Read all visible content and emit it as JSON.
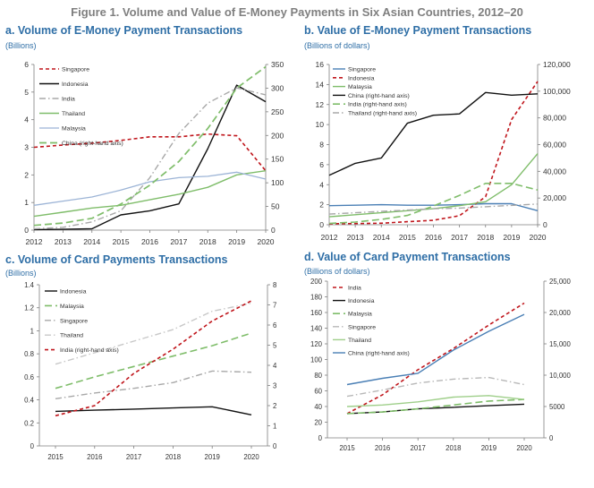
{
  "figure_title": "Figure 1. Volume and Value of E-Money Payments in Six Asian Countries, 2012–20",
  "chart_data": [
    {
      "id": "a",
      "type": "line",
      "title": "a. Volume of E-Money Payment Transactions",
      "unit": "(Billions)",
      "categories": [
        "2012",
        "2013",
        "2014",
        "2015",
        "2016",
        "2017",
        "2018",
        "2019",
        "2020"
      ],
      "ylim": [
        0,
        6
      ],
      "yticks": [
        0,
        1,
        2,
        3,
        4,
        5,
        6
      ],
      "y2lim": [
        0,
        350
      ],
      "y2ticks": [
        0,
        50,
        100,
        150,
        200,
        250,
        300,
        350
      ],
      "legend": "top-left",
      "series": [
        {
          "name": "Singapore",
          "color": "#c0161c",
          "dash": "4,3",
          "width": 1.6,
          "axis": "left",
          "values": [
            3.0,
            3.08,
            3.15,
            3.25,
            3.38,
            3.38,
            3.48,
            3.42,
            2.15
          ]
        },
        {
          "name": "Indonesia",
          "color": "#111111",
          "dash": "",
          "width": 1.4,
          "axis": "left",
          "values": [
            0.02,
            0.03,
            0.05,
            0.55,
            0.7,
            0.95,
            2.95,
            5.25,
            4.65
          ]
        },
        {
          "name": "India",
          "color": "#a8a8a8",
          "dash": "7,3,1.5,3",
          "width": 1.4,
          "axis": "left",
          "values": [
            0.05,
            0.1,
            0.3,
            0.7,
            1.9,
            3.5,
            4.6,
            5.15,
            4.9
          ]
        },
        {
          "name": "Thailand",
          "color": "#7fbd6a",
          "dash": "",
          "width": 1.4,
          "axis": "left",
          "values": [
            0.5,
            0.65,
            0.8,
            0.9,
            1.1,
            1.3,
            1.55,
            2.0,
            2.15
          ]
        },
        {
          "name": "Malaysia",
          "color": "#9cb4d6",
          "dash": "",
          "width": 1.3,
          "axis": "left",
          "values": [
            0.9,
            1.05,
            1.2,
            1.45,
            1.75,
            1.9,
            1.95,
            2.1,
            1.85
          ]
        },
        {
          "name": "China (right-hand axis)",
          "color": "#7fbd6a",
          "dash": "8,4",
          "width": 1.7,
          "axis": "right",
          "values": [
            10,
            15,
            25,
            55,
            95,
            145,
            215,
            300,
            345
          ]
        }
      ]
    },
    {
      "id": "b",
      "type": "line",
      "title": "b. Value of E-Money Payment Transactions",
      "unit": "(Billions of dollars)",
      "categories": [
        "2012",
        "2013",
        "2014",
        "2015",
        "2016",
        "2017",
        "2018",
        "2019",
        "2020"
      ],
      "ylim": [
        0,
        16
      ],
      "yticks": [
        0,
        2,
        4,
        6,
        8,
        10,
        12,
        14,
        16
      ],
      "y2lim": [
        0,
        120000
      ],
      "y2ticks": [
        0,
        20000,
        40000,
        60000,
        80000,
        100000,
        120000
      ],
      "legend": "top-left",
      "series": [
        {
          "name": "Singapore",
          "color": "#4a7fb5",
          "dash": "",
          "width": 1.4,
          "axis": "left",
          "values": [
            1.9,
            1.95,
            2.0,
            1.95,
            1.95,
            2.0,
            2.1,
            2.1,
            1.4
          ]
        },
        {
          "name": "Indonesia",
          "color": "#c0161c",
          "dash": "4,3",
          "width": 1.6,
          "axis": "left",
          "values": [
            0.1,
            0.12,
            0.15,
            0.3,
            0.45,
            0.9,
            2.8,
            10.5,
            14.3
          ]
        },
        {
          "name": "Malaysia",
          "color": "#7fbd6a",
          "dash": "",
          "width": 1.4,
          "axis": "left",
          "values": [
            0.8,
            1.0,
            1.2,
            1.4,
            1.6,
            1.9,
            2.3,
            4.0,
            7.1
          ]
        },
        {
          "name": "China (right-hand axis)",
          "color": "#111111",
          "dash": "",
          "width": 1.4,
          "axis": "right",
          "values": [
            37000,
            46000,
            50000,
            76000,
            82000,
            83000,
            99000,
            97000,
            98000
          ]
        },
        {
          "name": "India (right-hand axis)",
          "color": "#7fbd6a",
          "dash": "8,4",
          "width": 1.6,
          "axis": "right",
          "values": [
            1000,
            2000,
            4000,
            7000,
            14000,
            22000,
            31000,
            31000,
            26000
          ]
        },
        {
          "name": "Thailand (right-hand axis)",
          "color": "#a8a8a8",
          "dash": "7,3,1.5,3",
          "width": 1.4,
          "axis": "right",
          "values": [
            8000,
            9000,
            10000,
            11000,
            12000,
            12500,
            13500,
            14500,
            15500
          ]
        }
      ]
    },
    {
      "id": "c",
      "type": "line",
      "title": "c. Volume of Card Payments Transactions",
      "unit": "(Billions)",
      "categories": [
        "2015",
        "2016",
        "2017",
        "2018",
        "2019",
        "2020"
      ],
      "ylim": [
        0,
        1.4
      ],
      "yticks": [
        0,
        0.2,
        0.4,
        0.6,
        0.8,
        1,
        1.2,
        1.4
      ],
      "y2lim": [
        0,
        8
      ],
      "y2ticks": [
        0,
        1,
        2,
        3,
        4,
        5,
        6,
        7,
        8
      ],
      "legend": "top-left",
      "series": [
        {
          "name": "Indonesia",
          "color": "#111111",
          "dash": "",
          "width": 1.4,
          "axis": "left",
          "values": [
            0.3,
            0.31,
            0.32,
            0.33,
            0.34,
            0.27
          ]
        },
        {
          "name": "Malaysia",
          "color": "#7fbd6a",
          "dash": "8,4",
          "width": 1.6,
          "axis": "left",
          "values": [
            0.5,
            0.6,
            0.69,
            0.78,
            0.87,
            0.98
          ]
        },
        {
          "name": "Singapore",
          "color": "#a8a8a8",
          "dash": "7,3,1.5,3",
          "width": 1.4,
          "axis": "left",
          "values": [
            0.41,
            0.46,
            0.5,
            0.55,
            0.65,
            0.64
          ]
        },
        {
          "name": "Thailand",
          "color": "#c8c8c8",
          "dash": "7,3,1.5,3",
          "width": 1.4,
          "axis": "left",
          "values": [
            0.71,
            0.81,
            0.91,
            1.01,
            1.17,
            1.24
          ]
        },
        {
          "name": "India (right-hand axis)",
          "color": "#c0161c",
          "dash": "4,3",
          "width": 1.6,
          "axis": "right",
          "values": [
            1.5,
            2.0,
            3.6,
            4.8,
            6.2,
            7.2
          ]
        }
      ]
    },
    {
      "id": "d",
      "type": "line",
      "title": "d. Value of Card Payment Transactions",
      "unit": "(Billions of dollars)",
      "categories": [
        "2015",
        "2016",
        "2017",
        "2018",
        "2019",
        "2020"
      ],
      "ylim": [
        0,
        200
      ],
      "yticks": [
        0,
        20,
        40,
        60,
        80,
        100,
        120,
        140,
        160,
        180,
        200
      ],
      "y2lim": [
        0,
        25000
      ],
      "y2ticks": [
        0,
        5000,
        10000,
        15000,
        20000,
        25000
      ],
      "legend": "top-left",
      "series": [
        {
          "name": "India",
          "color": "#c0161c",
          "dash": "4,3",
          "width": 1.6,
          "axis": "left",
          "values": [
            31,
            55,
            87,
            114,
            144,
            172
          ]
        },
        {
          "name": "Indonesia",
          "color": "#111111",
          "dash": "",
          "width": 1.4,
          "axis": "left",
          "values": [
            31,
            33,
            37,
            39,
            41,
            43
          ]
        },
        {
          "name": "Malaysia",
          "color": "#7fbd6a",
          "dash": "8,4",
          "width": 1.6,
          "axis": "left",
          "values": [
            31,
            33,
            37,
            42,
            47,
            49
          ]
        },
        {
          "name": "Singapore",
          "color": "#b8b8b8",
          "dash": "7,3,1.5,3",
          "width": 1.4,
          "axis": "left",
          "values": [
            53,
            61,
            70,
            75,
            77,
            68
          ]
        },
        {
          "name": "Thailand",
          "color": "#9fcf8a",
          "dash": "",
          "width": 1.4,
          "axis": "left",
          "values": [
            40,
            42,
            46,
            52,
            54,
            49
          ]
        },
        {
          "name": "China (right-hand axis)",
          "color": "#4a7fb5",
          "dash": "",
          "width": 1.4,
          "axis": "right",
          "values": [
            8500,
            9500,
            10300,
            14000,
            17000,
            19700
          ]
        }
      ]
    }
  ]
}
